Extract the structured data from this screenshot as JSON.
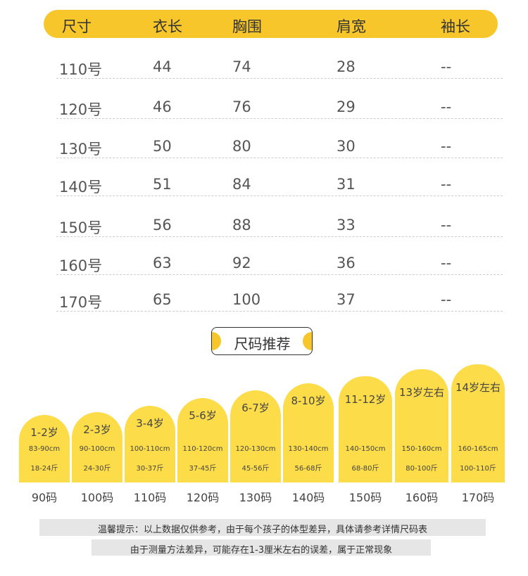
{
  "table": {
    "header": [
      "尺寸",
      "衣长",
      "胸围",
      "肩宽",
      "袖长"
    ],
    "rows": [
      [
        "110号",
        "44",
        "74",
        "28",
        "--"
      ],
      [
        "120号",
        "46",
        "76",
        "29",
        "--"
      ],
      [
        "130号",
        "50",
        "80",
        "30",
        "--"
      ],
      [
        "140号",
        "51",
        "84",
        "31",
        "--"
      ],
      [
        "150号",
        "56",
        "88",
        "33",
        "--"
      ],
      [
        "160号",
        "63",
        "92",
        "36",
        "--"
      ],
      [
        "170号",
        "65",
        "100",
        "37",
        "--"
      ]
    ]
  },
  "section_title": "尺码推荐",
  "cards": [
    {
      "age": "1-2岁",
      "height": "83-90cm",
      "weight": "18-24斤",
      "size": "90码"
    },
    {
      "age": "2-3岁",
      "height": "90-100cm",
      "weight": "24-30斤",
      "size": "100码"
    },
    {
      "age": "3-4岁",
      "height": "100-110cm",
      "weight": "30-37斤",
      "size": "110码"
    },
    {
      "age": "5-6岁",
      "height": "110-120cm",
      "weight": "37-45斤",
      "size": "120码"
    },
    {
      "age": "6-7岁",
      "height": "120-130cm",
      "weight": "45-56斤",
      "size": "130码"
    },
    {
      "age": "8-10岁",
      "height": "130-140cm",
      "weight": "56-68斤",
      "size": "140码"
    },
    {
      "age": "11-12岁",
      "height": "140-150cm",
      "weight": "68-80斤",
      "size": "150码"
    },
    {
      "age": "13岁左右",
      "height": "150-160cm",
      "weight": "80-100斤",
      "size": "160码"
    },
    {
      "age": "14岁左右",
      "height": "160-165cm",
      "weight": "100-110斤",
      "size": "170码"
    }
  ],
  "notes": [
    "温馨提示：以上数据仅供参考，由于每个孩子的体型差异，具体请参考详情尺码表",
    "由于测量方法差异，可能存在1-3厘米左右的误差，属于正常现象"
  ]
}
